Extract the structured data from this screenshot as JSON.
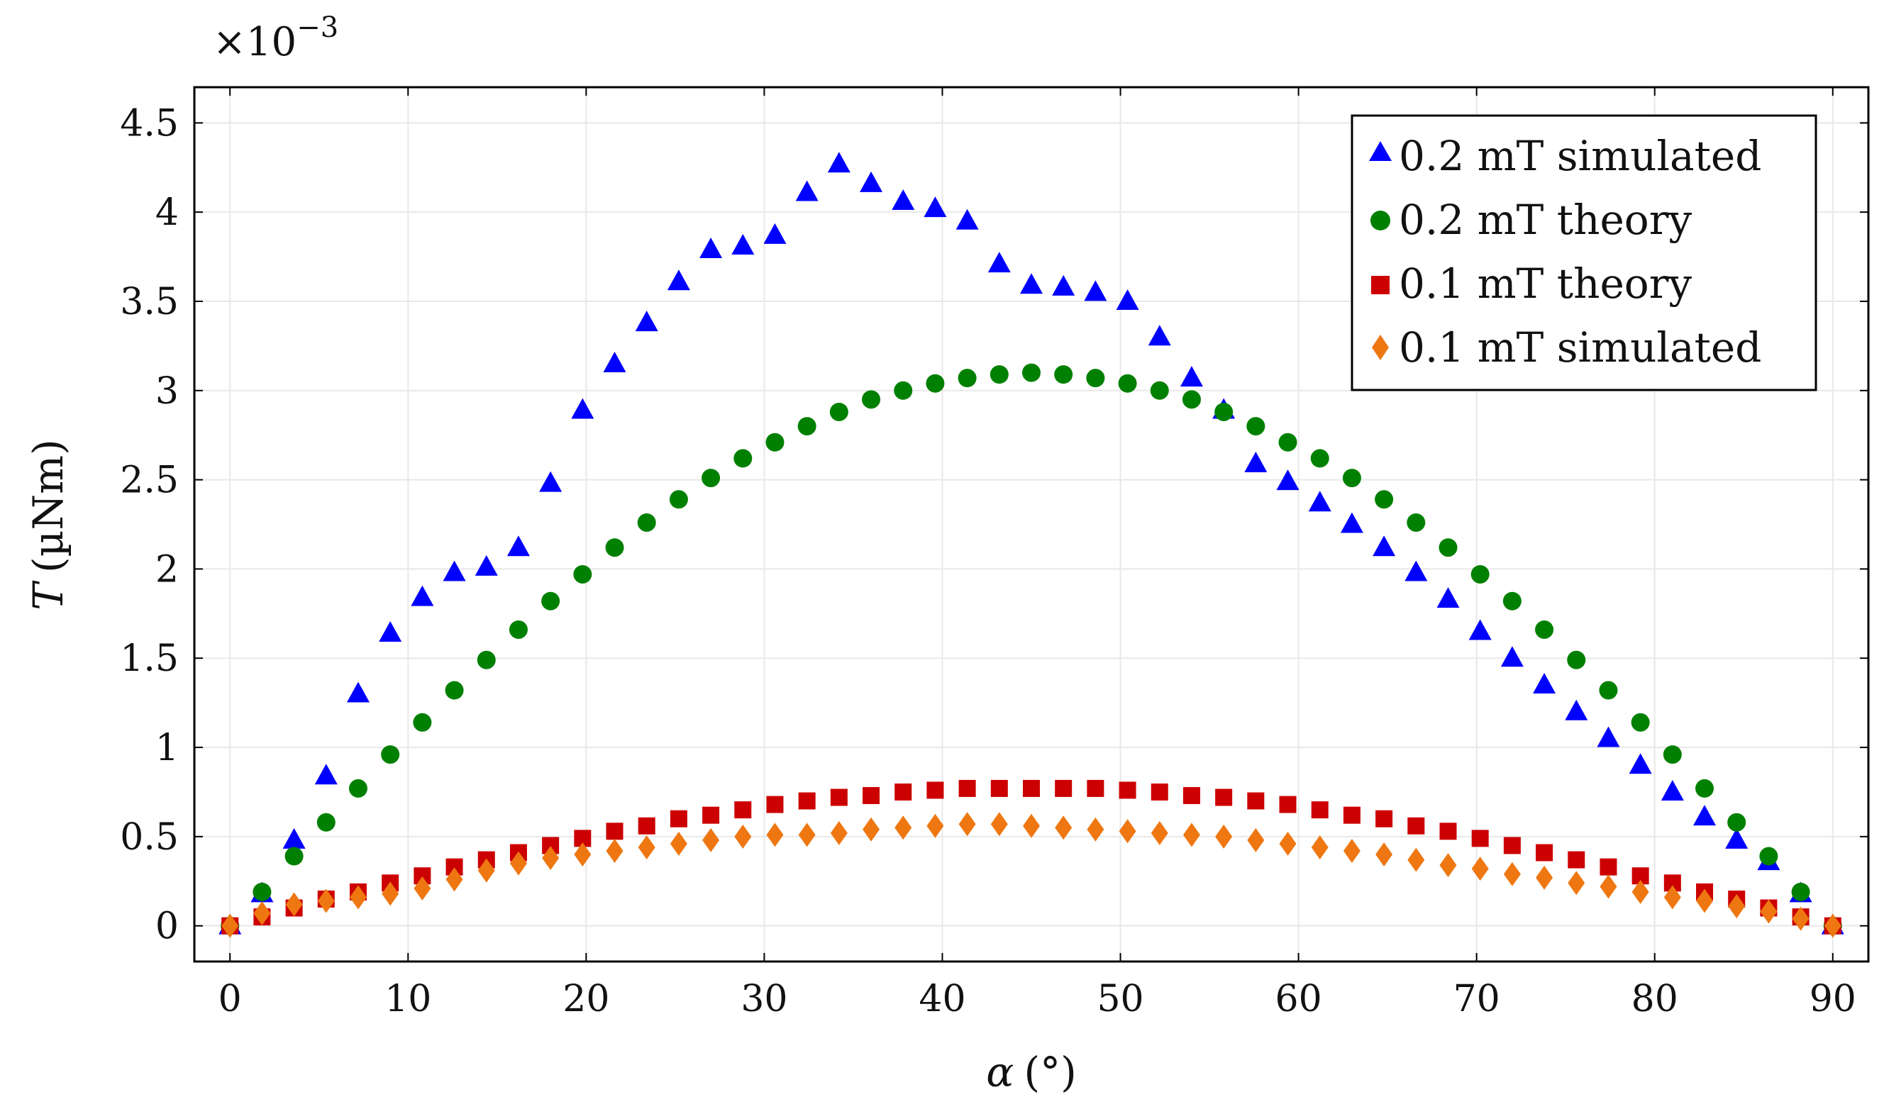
{
  "chart_data": {
    "type": "scatter",
    "title": "",
    "xlabel_symbol": "α",
    "xlabel_unit": "(°)",
    "ylabel_symbol": "T",
    "ylabel_unit": "(µNm)",
    "scale_prefix": "×10",
    "scale_exponent": "−3",
    "xlim": [
      -2,
      92
    ],
    "ylim": [
      -0.2,
      4.7
    ],
    "xticks": [
      0,
      10,
      20,
      30,
      40,
      50,
      60,
      70,
      80,
      90
    ],
    "yticks": [
      0,
      0.5,
      1,
      1.5,
      2,
      2.5,
      3,
      3.5,
      4,
      4.5
    ],
    "ytick_labels": [
      "0",
      "0.5",
      "1",
      "1.5",
      "2",
      "2.5",
      "3",
      "3.5",
      "4",
      "4.5"
    ],
    "grid": true,
    "legend_position": "top-right",
    "series": [
      {
        "name": "0.2 mT simulated",
        "marker": "triangle",
        "color": "#0000ff",
        "x": [
          0,
          1.8,
          3.6,
          5.4,
          7.2,
          9.0,
          10.8,
          12.6,
          14.4,
          16.2,
          18.0,
          19.8,
          21.6,
          23.4,
          25.2,
          27.0,
          28.8,
          30.6,
          32.4,
          34.2,
          36.0,
          37.8,
          39.6,
          41.4,
          43.2,
          45.0,
          46.8,
          48.6,
          50.4,
          52.2,
          54.0,
          55.8,
          57.6,
          59.4,
          61.2,
          63.0,
          64.8,
          66.6,
          68.4,
          70.2,
          72.0,
          73.8,
          75.6,
          77.4,
          79.2,
          81.0,
          82.8,
          84.6,
          86.4,
          88.2,
          90.0
        ],
        "y": [
          0,
          0.18,
          0.48,
          0.84,
          1.3,
          1.64,
          1.84,
          1.98,
          2.01,
          2.12,
          2.48,
          2.89,
          3.15,
          3.38,
          3.61,
          3.79,
          3.81,
          3.87,
          4.11,
          4.27,
          4.16,
          4.06,
          4.02,
          3.95,
          3.71,
          3.59,
          3.58,
          3.55,
          3.5,
          3.3,
          3.07,
          2.89,
          2.59,
          2.49,
          2.37,
          2.25,
          2.12,
          1.98,
          1.83,
          1.65,
          1.5,
          1.35,
          1.2,
          1.05,
          0.9,
          0.75,
          0.61,
          0.48,
          0.36,
          0.18,
          0
        ]
      },
      {
        "name": "0.2 mT theory",
        "marker": "circle",
        "color": "#008000",
        "x": [
          0,
          1.8,
          3.6,
          5.4,
          7.2,
          9.0,
          10.8,
          12.6,
          14.4,
          16.2,
          18.0,
          19.8,
          21.6,
          23.4,
          25.2,
          27.0,
          28.8,
          30.6,
          32.4,
          34.2,
          36.0,
          37.8,
          39.6,
          41.4,
          43.2,
          45.0,
          46.8,
          48.6,
          50.4,
          52.2,
          54.0,
          55.8,
          57.6,
          59.4,
          61.2,
          63.0,
          64.8,
          66.6,
          68.4,
          70.2,
          72.0,
          73.8,
          75.6,
          77.4,
          79.2,
          81.0,
          82.8,
          84.6,
          86.4,
          88.2,
          90.0
        ],
        "y": [
          0,
          0.19,
          0.39,
          0.58,
          0.77,
          0.96,
          1.14,
          1.32,
          1.49,
          1.66,
          1.82,
          1.97,
          2.12,
          2.26,
          2.39,
          2.51,
          2.62,
          2.71,
          2.8,
          2.88,
          2.95,
          3.0,
          3.04,
          3.07,
          3.09,
          3.1,
          3.09,
          3.07,
          3.04,
          3.0,
          2.95,
          2.88,
          2.8,
          2.71,
          2.62,
          2.51,
          2.39,
          2.26,
          2.12,
          1.97,
          1.82,
          1.66,
          1.49,
          1.32,
          1.14,
          0.96,
          0.77,
          0.58,
          0.39,
          0.19,
          0
        ]
      },
      {
        "name": "0.1 mT theory",
        "marker": "square",
        "color": "#cc0000",
        "x": [
          0,
          1.8,
          3.6,
          5.4,
          7.2,
          9.0,
          10.8,
          12.6,
          14.4,
          16.2,
          18.0,
          19.8,
          21.6,
          23.4,
          25.2,
          27.0,
          28.8,
          30.6,
          32.4,
          34.2,
          36.0,
          37.8,
          39.6,
          41.4,
          43.2,
          45.0,
          46.8,
          48.6,
          50.4,
          52.2,
          54.0,
          55.8,
          57.6,
          59.4,
          61.2,
          63.0,
          64.8,
          66.6,
          68.4,
          70.2,
          72.0,
          73.8,
          75.6,
          77.4,
          79.2,
          81.0,
          82.8,
          84.6,
          86.4,
          88.2,
          90.0
        ],
        "y": [
          0,
          0.05,
          0.1,
          0.15,
          0.19,
          0.24,
          0.28,
          0.33,
          0.37,
          0.41,
          0.45,
          0.49,
          0.53,
          0.56,
          0.6,
          0.62,
          0.65,
          0.68,
          0.7,
          0.72,
          0.73,
          0.75,
          0.76,
          0.77,
          0.77,
          0.77,
          0.77,
          0.77,
          0.76,
          0.75,
          0.73,
          0.72,
          0.7,
          0.68,
          0.65,
          0.62,
          0.6,
          0.56,
          0.53,
          0.49,
          0.45,
          0.41,
          0.37,
          0.33,
          0.28,
          0.24,
          0.19,
          0.15,
          0.1,
          0.05,
          0
        ]
      },
      {
        "name": "0.1 mT simulated",
        "marker": "diamond",
        "color": "#ee7711",
        "x": [
          0,
          1.8,
          3.6,
          5.4,
          7.2,
          9.0,
          10.8,
          12.6,
          14.4,
          16.2,
          18.0,
          19.8,
          21.6,
          23.4,
          25.2,
          27.0,
          28.8,
          30.6,
          32.4,
          34.2,
          36.0,
          37.8,
          39.6,
          41.4,
          43.2,
          45.0,
          46.8,
          48.6,
          50.4,
          52.2,
          54.0,
          55.8,
          57.6,
          59.4,
          61.2,
          63.0,
          64.8,
          66.6,
          68.4,
          70.2,
          72.0,
          73.8,
          75.6,
          77.4,
          79.2,
          81.0,
          82.8,
          84.6,
          86.4,
          88.2,
          90.0
        ],
        "y": [
          0,
          0.07,
          0.12,
          0.14,
          0.16,
          0.18,
          0.21,
          0.26,
          0.31,
          0.35,
          0.38,
          0.4,
          0.42,
          0.44,
          0.46,
          0.48,
          0.5,
          0.51,
          0.51,
          0.52,
          0.54,
          0.55,
          0.56,
          0.57,
          0.57,
          0.56,
          0.55,
          0.54,
          0.53,
          0.52,
          0.51,
          0.5,
          0.48,
          0.46,
          0.44,
          0.42,
          0.4,
          0.37,
          0.34,
          0.32,
          0.29,
          0.27,
          0.24,
          0.22,
          0.19,
          0.16,
          0.14,
          0.11,
          0.08,
          0.04,
          0
        ]
      }
    ]
  }
}
